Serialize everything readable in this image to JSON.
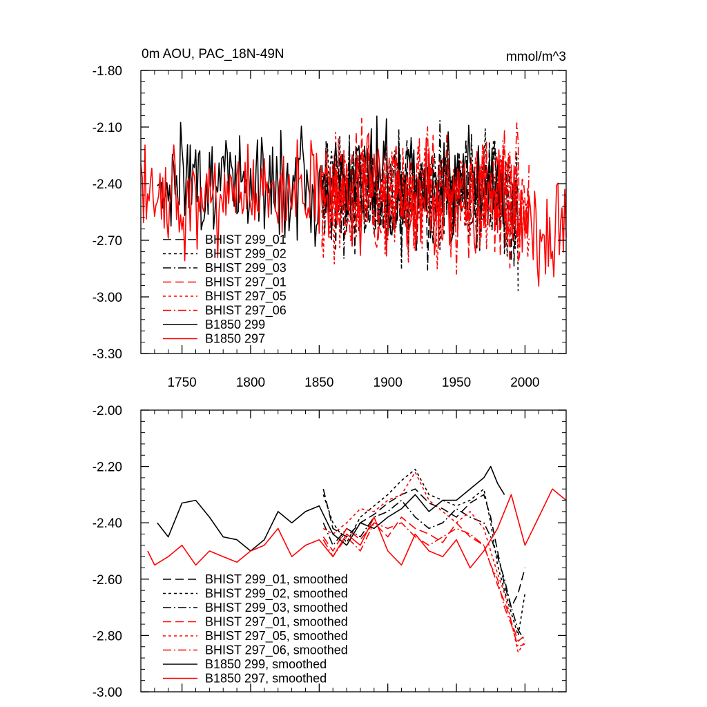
{
  "chart_data": [
    {
      "type": "line",
      "title": "0m AOU, PAC_18N-49N",
      "units": "mmol/m^3",
      "xlim": [
        1720,
        2030
      ],
      "ylim": [
        -3.3,
        -1.8
      ],
      "x_ticks": [
        1750,
        1800,
        1850,
        1900,
        1950,
        2000
      ],
      "y_ticks": [
        -1.8,
        -2.1,
        -2.4,
        -2.7,
        -3.0,
        -3.3
      ],
      "y_tick_labels": [
        "-1.80",
        "-2.10",
        "-2.40",
        "-2.70",
        "-3.00",
        "-3.30"
      ],
      "legend_position": "bottom-left",
      "series": [
        {
          "name": "BHIST 299_01",
          "color": "#000000",
          "dash": "long-dash",
          "start": 1852,
          "end": 1995,
          "mean": -2.45,
          "amp": 0.26,
          "seed": 11
        },
        {
          "name": "BHIST 299_02",
          "color": "#000000",
          "dash": "short-dash",
          "start": 1852,
          "end": 1995,
          "mean": -2.45,
          "amp": 0.26,
          "seed": 12
        },
        {
          "name": "BHIST 299_03",
          "color": "#000000",
          "dash": "dash-dot",
          "start": 1852,
          "end": 1995,
          "mean": -2.45,
          "amp": 0.26,
          "seed": 13
        },
        {
          "name": "BHIST 297_01",
          "color": "#ff0000",
          "dash": "long-dash",
          "start": 1852,
          "end": 2003,
          "mean": -2.45,
          "amp": 0.26,
          "seed": 14
        },
        {
          "name": "BHIST 297_05",
          "color": "#ff0000",
          "dash": "short-dash",
          "start": 1852,
          "end": 2003,
          "mean": -2.45,
          "amp": 0.26,
          "seed": 15
        },
        {
          "name": "BHIST 297_06",
          "color": "#ff0000",
          "dash": "dash-dot",
          "start": 1852,
          "end": 2003,
          "mean": -2.45,
          "amp": 0.26,
          "seed": 16
        },
        {
          "name": "B1850 299",
          "color": "#000000",
          "dash": "solid",
          "start": 1732,
          "end": 1985,
          "mean": -2.38,
          "amp": 0.24,
          "seed": 17
        },
        {
          "name": "B1850 297",
          "color": "#ff0000",
          "dash": "solid",
          "start": 1720,
          "end": 2030,
          "mean": -2.48,
          "amp": 0.22,
          "seed": 18
        }
      ]
    },
    {
      "type": "line",
      "title": "",
      "xlim": [
        1720,
        2030
      ],
      "ylim": [
        -3.0,
        -2.0
      ],
      "x_ticks": [
        1750,
        1800,
        1850,
        1900,
        1950,
        2000
      ],
      "y_ticks": [
        -2.0,
        -2.2,
        -2.4,
        -2.6,
        -2.8,
        -3.0
      ],
      "y_tick_labels": [
        "-2.00",
        "-2.20",
        "-2.40",
        "-2.60",
        "-2.80",
        "-3.00"
      ],
      "legend_position": "bottom-left",
      "series": [
        {
          "name": "BHIST 299_01, smoothed",
          "color": "#000000",
          "dash": "long-dash",
          "x": [
            1853,
            1860,
            1870,
            1880,
            1890,
            1900,
            1910,
            1920,
            1930,
            1940,
            1950,
            1960,
            1970,
            1975,
            1980,
            1985,
            1990,
            1995,
            2000
          ],
          "y": [
            -2.28,
            -2.42,
            -2.45,
            -2.4,
            -2.37,
            -2.33,
            -2.3,
            -2.28,
            -2.33,
            -2.35,
            -2.38,
            -2.33,
            -2.3,
            -2.38,
            -2.5,
            -2.62,
            -2.7,
            -2.65,
            -2.56
          ]
        },
        {
          "name": "BHIST 299_02, smoothed",
          "color": "#000000",
          "dash": "short-dash",
          "x": [
            1853,
            1860,
            1870,
            1880,
            1890,
            1900,
            1910,
            1920,
            1930,
            1940,
            1950,
            1960,
            1970,
            1975,
            1980,
            1985,
            1990,
            1995,
            2000
          ],
          "y": [
            -2.3,
            -2.4,
            -2.47,
            -2.38,
            -2.34,
            -2.3,
            -2.25,
            -2.21,
            -2.3,
            -2.32,
            -2.34,
            -2.32,
            -2.28,
            -2.4,
            -2.55,
            -2.64,
            -2.72,
            -2.8,
            -2.65
          ]
        },
        {
          "name": "BHIST 299_03, smoothed",
          "color": "#000000",
          "dash": "dash-dot",
          "x": [
            1853,
            1860,
            1870,
            1880,
            1890,
            1900,
            1910,
            1920,
            1930,
            1940,
            1950,
            1960,
            1970,
            1975,
            1980,
            1985,
            1990,
            1995,
            2000
          ],
          "y": [
            -2.4,
            -2.48,
            -2.42,
            -2.45,
            -2.38,
            -2.36,
            -2.32,
            -2.38,
            -2.42,
            -2.4,
            -2.35,
            -2.38,
            -2.4,
            -2.45,
            -2.52,
            -2.6,
            -2.7,
            -2.78,
            -2.82
          ]
        },
        {
          "name": "BHIST 297_01, smoothed",
          "color": "#ff0000",
          "dash": "long-dash",
          "x": [
            1853,
            1860,
            1870,
            1880,
            1890,
            1900,
            1910,
            1920,
            1930,
            1940,
            1950,
            1960,
            1970,
            1975,
            1980,
            1985,
            1990,
            1995,
            2000
          ],
          "y": [
            -2.45,
            -2.5,
            -2.42,
            -2.46,
            -2.4,
            -2.45,
            -2.38,
            -2.42,
            -2.44,
            -2.47,
            -2.4,
            -2.45,
            -2.48,
            -2.55,
            -2.62,
            -2.68,
            -2.75,
            -2.82,
            -2.8
          ]
        },
        {
          "name": "BHIST 297_05, smoothed",
          "color": "#ff0000",
          "dash": "short-dash",
          "x": [
            1853,
            1860,
            1870,
            1880,
            1890,
            1900,
            1910,
            1920,
            1930,
            1940,
            1950,
            1960,
            1970,
            1975,
            1980,
            1985,
            1990,
            1995,
            2000
          ],
          "y": [
            -2.42,
            -2.44,
            -2.4,
            -2.35,
            -2.36,
            -2.32,
            -2.3,
            -2.22,
            -2.32,
            -2.36,
            -2.4,
            -2.36,
            -2.42,
            -2.5,
            -2.58,
            -2.65,
            -2.75,
            -2.86,
            -2.82
          ]
        },
        {
          "name": "BHIST 297_06, smoothed",
          "color": "#ff0000",
          "dash": "dash-dot",
          "x": [
            1853,
            1860,
            1870,
            1880,
            1890,
            1900,
            1910,
            1920,
            1930,
            1940,
            1950,
            1960,
            1970,
            1975,
            1980,
            1985,
            1990,
            1995,
            2000
          ],
          "y": [
            -2.46,
            -2.52,
            -2.45,
            -2.5,
            -2.4,
            -2.42,
            -2.4,
            -2.45,
            -2.48,
            -2.45,
            -2.42,
            -2.44,
            -2.48,
            -2.55,
            -2.6,
            -2.7,
            -2.76,
            -2.84,
            -2.83
          ]
        },
        {
          "name": "B1850 299, smoothed",
          "color": "#000000",
          "dash": "solid",
          "x": [
            1732,
            1740,
            1750,
            1760,
            1770,
            1780,
            1790,
            1800,
            1810,
            1820,
            1830,
            1840,
            1850,
            1860,
            1870,
            1880,
            1890,
            1900,
            1910,
            1920,
            1930,
            1940,
            1950,
            1960,
            1970,
            1975,
            1980,
            1985
          ],
          "y": [
            -2.4,
            -2.45,
            -2.33,
            -2.32,
            -2.38,
            -2.45,
            -2.46,
            -2.5,
            -2.46,
            -2.36,
            -2.4,
            -2.36,
            -2.34,
            -2.44,
            -2.48,
            -2.4,
            -2.42,
            -2.38,
            -2.35,
            -2.3,
            -2.36,
            -2.32,
            -2.32,
            -2.28,
            -2.24,
            -2.2,
            -2.26,
            -2.3
          ]
        },
        {
          "name": "B1850 297, smoothed",
          "color": "#ff0000",
          "dash": "solid",
          "x": [
            1725,
            1730,
            1740,
            1750,
            1760,
            1770,
            1780,
            1790,
            1800,
            1810,
            1820,
            1830,
            1840,
            1850,
            1860,
            1870,
            1880,
            1890,
            1900,
            1910,
            1920,
            1930,
            1940,
            1950,
            1960,
            1970,
            1980,
            1990,
            2000,
            2010,
            2020,
            2030
          ],
          "y": [
            -2.5,
            -2.55,
            -2.52,
            -2.48,
            -2.55,
            -2.5,
            -2.52,
            -2.54,
            -2.5,
            -2.48,
            -2.42,
            -2.52,
            -2.48,
            -2.46,
            -2.52,
            -2.44,
            -2.48,
            -2.38,
            -2.5,
            -2.55,
            -2.44,
            -2.5,
            -2.52,
            -2.46,
            -2.56,
            -2.5,
            -2.42,
            -2.3,
            -2.48,
            -2.38,
            -2.28,
            -2.32
          ]
        }
      ]
    }
  ]
}
